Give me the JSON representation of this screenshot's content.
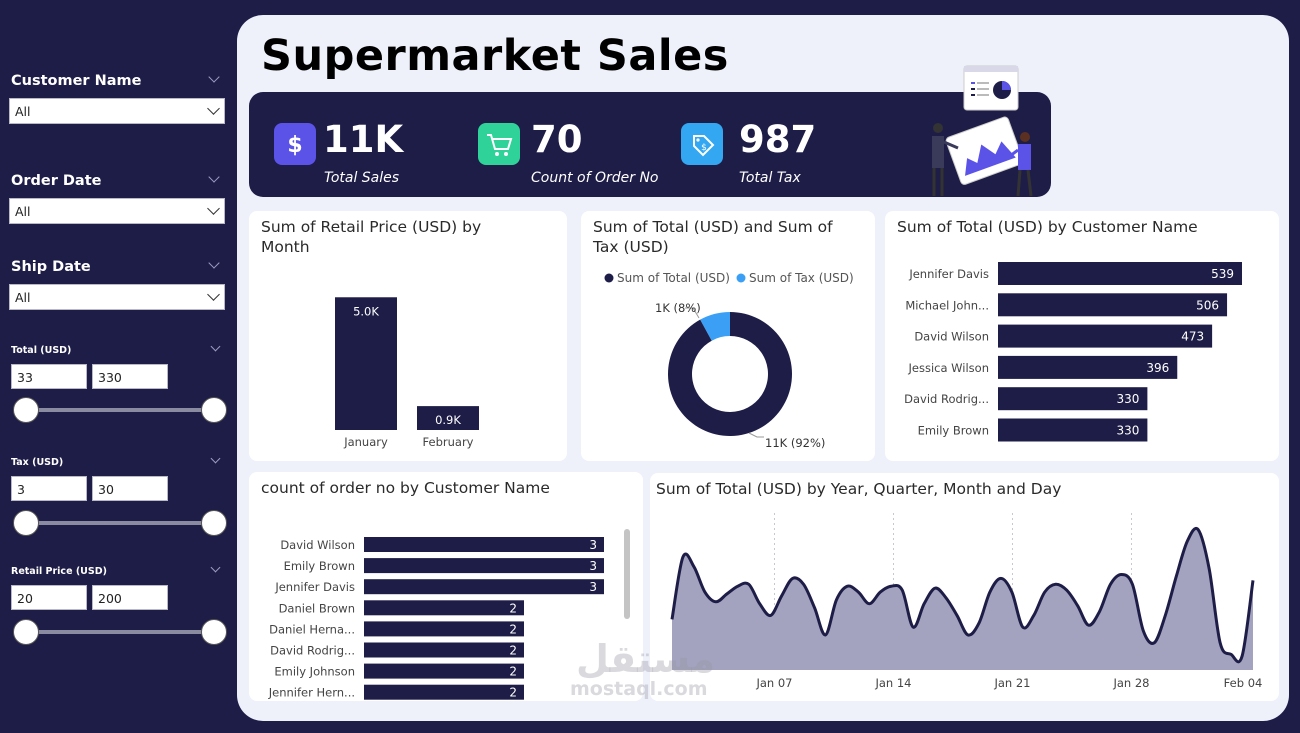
{
  "filters": {
    "customer_name": {
      "label": "Customer Name",
      "value": "All"
    },
    "order_date": {
      "label": "Order Date",
      "value": "All"
    },
    "ship_date": {
      "label": "Ship Date",
      "value": "All"
    },
    "total": {
      "label": "Total (USD)",
      "min": "33",
      "max": "330"
    },
    "tax": {
      "label": "Tax (USD)",
      "min": "3",
      "max": "30"
    },
    "retail_price": {
      "label": "Retail Price (USD)",
      "min": "20",
      "max": "200"
    }
  },
  "page_title": "Supermarket Sales",
  "kpis": {
    "total_sales": {
      "value": "11K",
      "label": "Total Sales",
      "icon": "dollar-icon",
      "color": "#5b53e8"
    },
    "order_count": {
      "value": "70",
      "label": "Count of Order No",
      "icon": "cart-icon",
      "color": "#2fd39a"
    },
    "total_tax": {
      "value": "987",
      "label": "Total Tax",
      "icon": "price-tag-icon",
      "color": "#33a7f2"
    }
  },
  "watermark": {
    "arabic": "مستقل",
    "latin": "mostaql.com"
  },
  "colors": {
    "navy": "#1e1d47",
    "light_blue": "#3ba0f5",
    "area_fill": "#a4a3bf"
  },
  "chart_data": [
    {
      "id": "retail_by_month",
      "type": "bar",
      "title": "Sum of Retail Price (USD) by Month",
      "categories": [
        "January",
        "February"
      ],
      "values": [
        5.0,
        0.9
      ],
      "data_labels": [
        "5.0K",
        "0.9K"
      ],
      "ylim": [
        0,
        5.5
      ]
    },
    {
      "id": "total_and_tax",
      "type": "pie",
      "title": "Sum of Total (USD) and Sum of Tax (USD)",
      "legend": [
        "Sum of Total (USD)",
        "Sum of Tax (USD)"
      ],
      "legend_position": "top",
      "values": [
        92,
        8
      ],
      "data_labels": [
        "11K (92%)",
        "1K (8%)"
      ],
      "colors": [
        "#1e1d47",
        "#3ba0f5"
      ]
    },
    {
      "id": "total_by_customer",
      "type": "bar",
      "orientation": "horizontal",
      "title": "Sum of Total (USD) by Customer Name",
      "categories": [
        "Jennifer Davis",
        "Michael John...",
        "David Wilson",
        "Jessica Wilson",
        "David Rodrig...",
        "Emily Brown"
      ],
      "values": [
        539,
        506,
        473,
        396,
        330,
        330
      ],
      "xlim": [
        0,
        560
      ]
    },
    {
      "id": "orders_by_customer",
      "type": "bar",
      "orientation": "horizontal",
      "title": "count of order no by Customer Name",
      "categories": [
        "David Wilson",
        "Emily Brown",
        "Jennifer Davis",
        "Daniel Brown",
        "Daniel Herna...",
        "David Rodrig...",
        "Emily Johnson",
        "Jennifer Hern..."
      ],
      "values": [
        3,
        3,
        3,
        2,
        2,
        2,
        2,
        2
      ],
      "xlim": [
        0,
        3
      ]
    },
    {
      "id": "total_by_date",
      "type": "area",
      "title": "Sum of Total (USD) by Year, Quarter, Month and Day",
      "x_ticks": [
        "Jan 07",
        "Jan 14",
        "Jan 21",
        "Jan 28",
        "Feb 04"
      ],
      "x_start": "Jan 02",
      "x_end": "Feb 04",
      "values": [
        280,
        440,
        415,
        350,
        325,
        345,
        365,
        370,
        320,
        290,
        340,
        385,
        370,
        310,
        240,
        330,
        365,
        350,
        320,
        350,
        365,
        355,
        260,
        320,
        360,
        335,
        290,
        240,
        270,
        350,
        385,
        350,
        260,
        290,
        350,
        370,
        355,
        315,
        265,
        300,
        370,
        395,
        370,
        250,
        220,
        290,
        390,
        480,
        510,
        410,
        220,
        190,
        185,
        380
      ],
      "ylim": [
        150,
        540
      ],
      "grid": "vertical dotted"
    }
  ]
}
